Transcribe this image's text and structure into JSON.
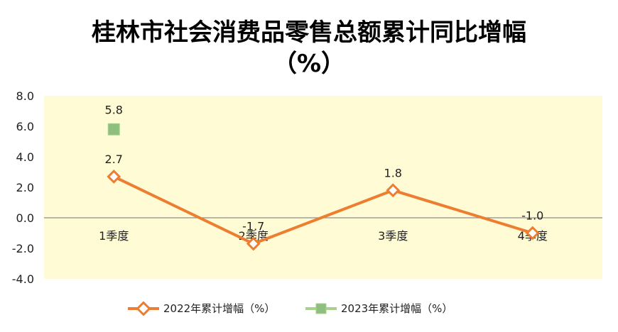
{
  "chart_data": {
    "type": "line",
    "title": "桂林市社会消费品零售总额累计同比增幅",
    "subtitle": "（%）",
    "categories": [
      "1季度",
      "2季度",
      "3季度",
      "4季度"
    ],
    "series": [
      {
        "name": "2022年累计增幅（%）",
        "values": [
          2.7,
          -1.7,
          1.8,
          -1.0
        ],
        "color": "#ED7D31",
        "marker": "diamond",
        "labels": [
          "2.7",
          "-1.7",
          "1.8",
          "-1.0"
        ]
      },
      {
        "name": "2023年累计增幅（%）",
        "values": [
          5.8,
          null,
          null,
          null
        ],
        "color": "#8FBF7F",
        "marker": "square",
        "labels": [
          "5.8",
          "",
          "",
          ""
        ]
      }
    ],
    "ylim": [
      -4.0,
      8.0
    ],
    "yticks": [
      "8.0",
      "6.0",
      "4.0",
      "2.0",
      "0.0",
      "-2.0",
      "-4.0"
    ],
    "plot_background": "#FFFBD5",
    "grid": false,
    "legend_position": "bottom"
  }
}
